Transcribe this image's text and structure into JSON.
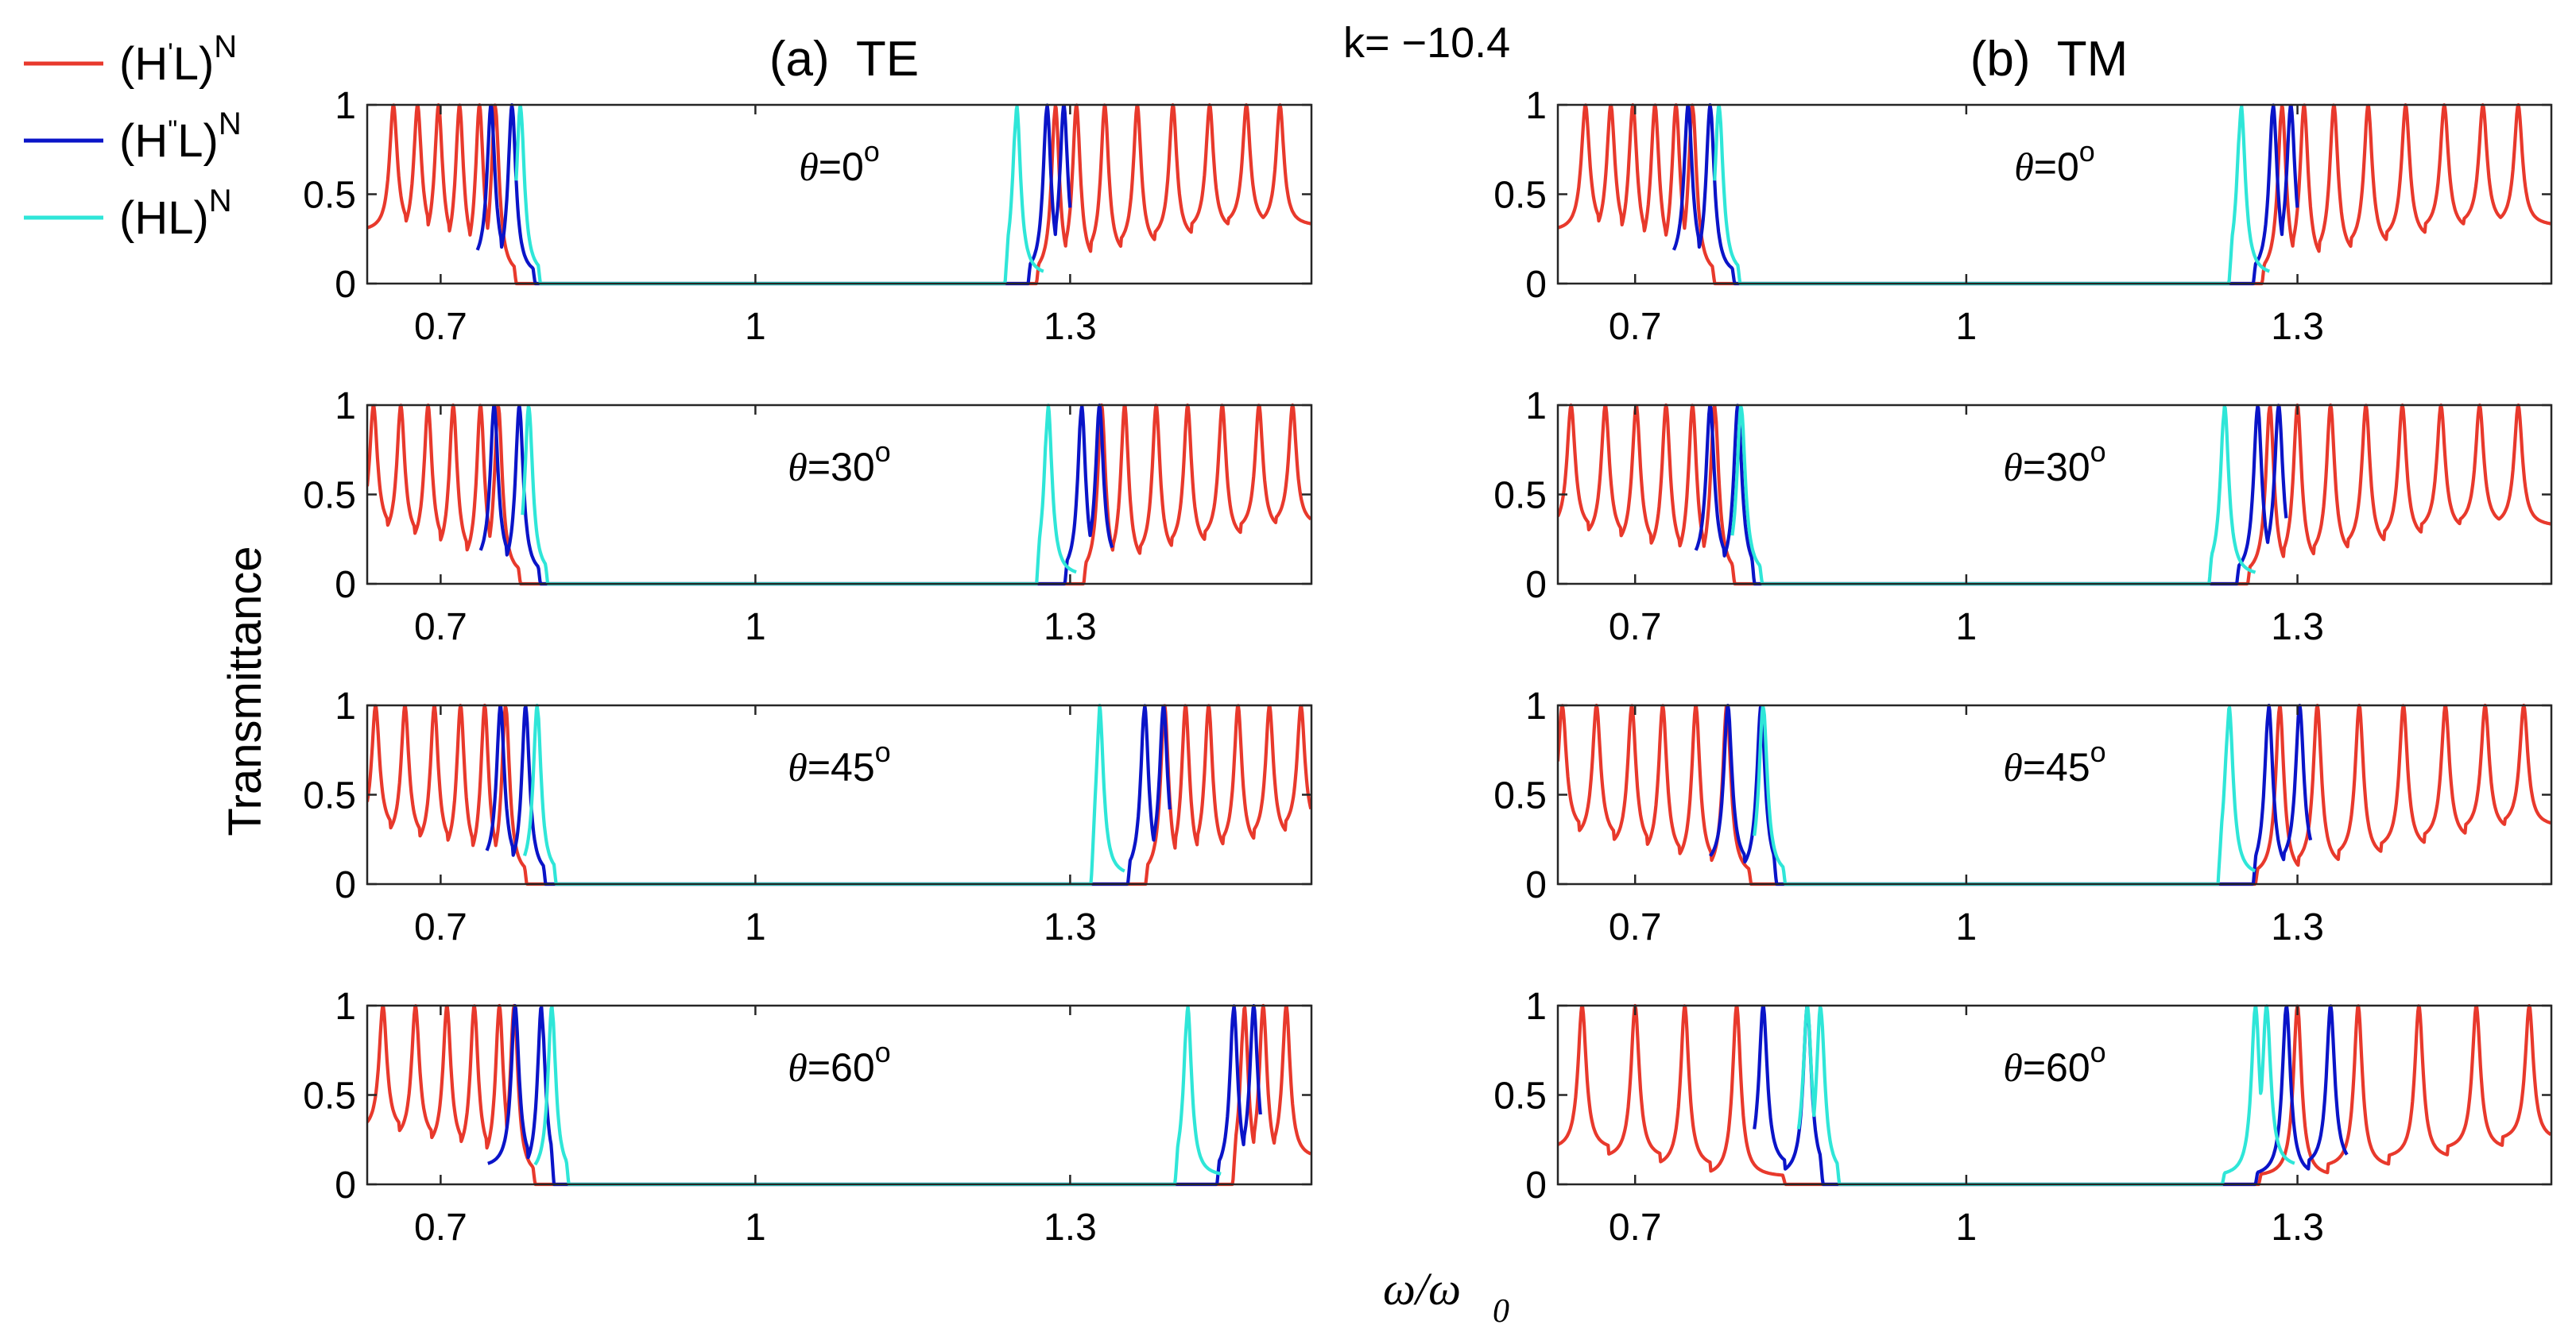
{
  "chart_data": {
    "type": "line",
    "title": "k= −10.4",
    "xlabel": "ω/ω₀",
    "xlabel_main": "ω/ω",
    "xlabel_sub": "0",
    "ylabel": "Transmittance",
    "xlim": [
      0.63,
      1.53
    ],
    "ylim": [
      0,
      1
    ],
    "xticks": [
      "0.7",
      "1",
      "1.3"
    ],
    "xtick_values": [
      0.7,
      1.0,
      1.3
    ],
    "yticks": [
      "0",
      "0.5",
      "1"
    ],
    "ytick_values": [
      0,
      0.5,
      1
    ],
    "legend": [
      {
        "name": "(H′L)^N",
        "base": "(H",
        "mark": "'",
        "rest": "L)",
        "sup": "N",
        "color": "#e8392c"
      },
      {
        "name": "(H″L)^N",
        "base": "(H",
        "mark": "\"",
        "rest": "L)",
        "sup": "N",
        "color": "#0a14c8"
      },
      {
        "name": "(HL)^N",
        "base": "(HL)",
        "mark": "",
        "rest": "",
        "sup": "N",
        "color": "#2fe6d8"
      }
    ],
    "panels": [
      {
        "title": "(a)  TE",
        "column": "TE",
        "rows": [
          {
            "label": "θ=0°",
            "theta_text": "θ",
            "angle_text": "=0",
            "deg": "o",
            "series": [
              {
                "name": "(H′L)^N",
                "band": [
                  0.772,
                  1.268
                ],
                "peaks_low": [
                  0.655,
                  0.678,
                  0.698,
                  0.718,
                  0.737,
                  0.752
                ],
                "peaks_high": [
                  1.286,
                  1.306,
                  1.333,
                  1.364,
                  1.398,
                  1.433,
                  1.468,
                  1.5
                ],
                "start": 0.63,
                "end": 1.53
              },
              {
                "name": "(H″L)^N",
                "band": [
                  0.79,
                  1.26
                ],
                "peaks_low": [
                  0.748,
                  0.768
                ],
                "peaks_high": [
                  1.278,
                  1.294
                ],
                "start": 0.735,
                "end": 1.3
              },
              {
                "name": "(HL)^N",
                "band": [
                  0.795,
                  1.238
                ],
                "peaks_low": [
                  0.776
                ],
                "peaks_high": [
                  1.249
                ],
                "start": 0.772,
                "end": 1.275
              }
            ]
          },
          {
            "label": "θ=30°",
            "theta_text": "θ",
            "angle_text": "=30",
            "deg": "o",
            "series": [
              {
                "name": "(H′L)^N",
                "band": [
                  0.776,
                  1.313
                ],
                "peaks_low": [
                  0.636,
                  0.662,
                  0.688,
                  0.712,
                  0.738,
                  0.755
                ],
                "peaks_high": [
                  1.33,
                  1.352,
                  1.382,
                  1.412,
                  1.445,
                  1.48,
                  1.512
                ],
                "start": 0.63,
                "end": 1.53
              },
              {
                "name": "(H″L)^N",
                "band": [
                  0.795,
                  1.295
                ],
                "peaks_low": [
                  0.751,
                  0.775
                ],
                "peaks_high": [
                  1.311,
                  1.328
                ],
                "start": 0.738,
                "end": 1.34
              },
              {
                "name": "(HL)^N",
                "band": [
                  0.802,
                  1.268
                ],
                "peaks_low": [
                  0.784
                ],
                "peaks_high": [
                  1.279
                ],
                "start": 0.778,
                "end": 1.306
              }
            ]
          },
          {
            "label": "θ=45°",
            "theta_text": "θ",
            "angle_text": "=45",
            "deg": "o",
            "series": [
              {
                "name": "(H′L)^N",
                "band": [
                  0.782,
                  1.372
                ],
                "peaks_low": [
                  0.638,
                  0.666,
                  0.694,
                  0.719,
                  0.742,
                  0.762
                ],
                "peaks_high": [
                  1.39,
                  1.41,
                  1.432,
                  1.46,
                  1.49,
                  1.52
                ],
                "start": 0.63,
                "end": 1.53
              },
              {
                "name": "(H″L)^N",
                "band": [
                  0.8,
                  1.355
                ],
                "peaks_low": [
                  0.757,
                  0.781
                ],
                "peaks_high": [
                  1.371,
                  1.389
                ],
                "start": 0.744,
                "end": 1.395
              },
              {
                "name": "(HL)^N",
                "band": [
                  0.81,
                  1.32
                ],
                "peaks_low": [
                  0.792
                ],
                "peaks_high": [
                  1.328
                ],
                "start": 0.78,
                "end": 1.352
              }
            ]
          },
          {
            "label": "θ=60°",
            "theta_text": "θ",
            "angle_text": "=60",
            "deg": "o",
            "series": [
              {
                "name": "(H′L)^N",
                "band": [
                  0.79,
                  1.455
                ],
                "peaks_low": [
                  0.645,
                  0.676,
                  0.706,
                  0.732,
                  0.756,
                  0.77
                ],
                "peaks_high": [
                  1.466,
                  1.484,
                  1.506
                ],
                "start": 0.63,
                "end": 1.53
              },
              {
                "name": "(H″L)^N",
                "band": [
                  0.808,
                  1.44
                ],
                "peaks_low": [
                  0.771,
                  0.796
                ],
                "peaks_high": [
                  1.456,
                  1.475
                ],
                "start": 0.745,
                "end": 1.482
              },
              {
                "name": "(HL)^N",
                "band": [
                  0.822,
                  1.4
                ],
                "peaks_low": [
                  0.806
                ],
                "peaks_high": [
                  1.412
                ],
                "start": 0.79,
                "end": 1.444
              }
            ]
          }
        ]
      },
      {
        "title": "(b)  TM",
        "column": "TM",
        "rows": [
          {
            "label": "θ=0°",
            "theta_text": "θ",
            "angle_text": "=0",
            "deg": "o",
            "series": [
              {
                "name": "(H′L)^N",
                "band": [
                  0.772,
                  1.268
                ],
                "peaks_low": [
                  0.655,
                  0.678,
                  0.698,
                  0.718,
                  0.737,
                  0.752
                ],
                "peaks_high": [
                  1.286,
                  1.306,
                  1.333,
                  1.364,
                  1.398,
                  1.433,
                  1.468,
                  1.5
                ],
                "start": 0.63,
                "end": 1.53
              },
              {
                "name": "(H″L)^N",
                "band": [
                  0.79,
                  1.26
                ],
                "peaks_low": [
                  0.748,
                  0.768
                ],
                "peaks_high": [
                  1.278,
                  1.294
                ],
                "start": 0.735,
                "end": 1.3
              },
              {
                "name": "(HL)^N",
                "band": [
                  0.795,
                  1.238
                ],
                "peaks_low": [
                  0.776
                ],
                "peaks_high": [
                  1.249
                ],
                "start": 0.772,
                "end": 1.275
              }
            ]
          },
          {
            "label": "θ=30°",
            "theta_text": "θ",
            "angle_text": "=30",
            "deg": "o",
            "series": [
              {
                "name": "(H′L)^N",
                "band": [
                  0.79,
                  1.255
                ],
                "peaks_low": [
                  0.642,
                  0.673,
                  0.701,
                  0.728,
                  0.752,
                  0.772
                ],
                "peaks_high": [
                  1.275,
                  1.3,
                  1.33,
                  1.362,
                  1.395,
                  1.43,
                  1.465,
                  1.5
                ],
                "start": 0.63,
                "end": 1.53
              },
              {
                "name": "(H″L)^N",
                "band": [
                  0.808,
                  1.245
                ],
                "peaks_low": [
                  0.768,
                  0.793
                ],
                "peaks_high": [
                  1.264,
                  1.283
                ],
                "start": 0.755,
                "end": 1.29
              },
              {
                "name": "(HL)^N",
                "band": [
                  0.815,
                  1.22
                ],
                "peaks_low": [
                  0.796
                ],
                "peaks_high": [
                  1.234
                ],
                "start": 0.788,
                "end": 1.262
              }
            ]
          },
          {
            "label": "θ=45°",
            "theta_text": "θ",
            "angle_text": "=45",
            "deg": "o",
            "series": [
              {
                "name": "(H′L)^N",
                "band": [
                  0.805,
                  1.262
                ],
                "peaks_low": [
                  0.634,
                  0.665,
                  0.697,
                  0.725,
                  0.755,
                  0.783
                ],
                "peaks_high": [
                  1.284,
                  1.318,
                  1.356,
                  1.396,
                  1.434,
                  1.47,
                  1.505
                ],
                "start": 0.63,
                "end": 1.53
              },
              {
                "name": "(H″L)^N",
                "band": [
                  0.828,
                  1.26
                ],
                "peaks_low": [
                  0.784,
                  0.814
                ],
                "peaks_high": [
                  1.274,
                  1.302
                ],
                "start": 0.768,
                "end": 1.312
              },
              {
                "name": "(HL)^N",
                "band": [
                  0.836,
                  1.228
                ],
                "peaks_low": [
                  0.816
                ],
                "peaks_high": [
                  1.238
                ],
                "start": 0.808,
                "end": 1.262
              }
            ]
          },
          {
            "label": "θ=60°",
            "theta_text": "θ",
            "angle_text": "=60",
            "deg": "o",
            "series": [
              {
                "name": "(H′L)^N",
                "band": [
                  0.836,
                  1.265
                ],
                "peaks_low": [
                  0.652,
                  0.7,
                  0.745,
                  0.792
                ],
                "peaks_high": [
                  1.3,
                  1.355,
                  1.41,
                  1.462,
                  1.51
                ],
                "start": 0.63,
                "end": 1.53
              },
              {
                "name": "(H″L)^N",
                "band": [
                  0.87,
                  1.262
                ],
                "peaks_low": [
                  0.816,
                  0.856
                ],
                "peaks_high": [
                  1.29,
                  1.33
                ],
                "start": 0.808,
                "end": 1.345
              },
              {
                "name": "(HL)^N",
                "band": [
                  0.885,
                  1.232
                ],
                "peaks_low": [
                  0.856,
                  0.868
                ],
                "peaks_high": [
                  1.262,
                  1.272
                ],
                "start": 0.848,
                "end": 1.298
              }
            ]
          }
        ]
      }
    ]
  }
}
